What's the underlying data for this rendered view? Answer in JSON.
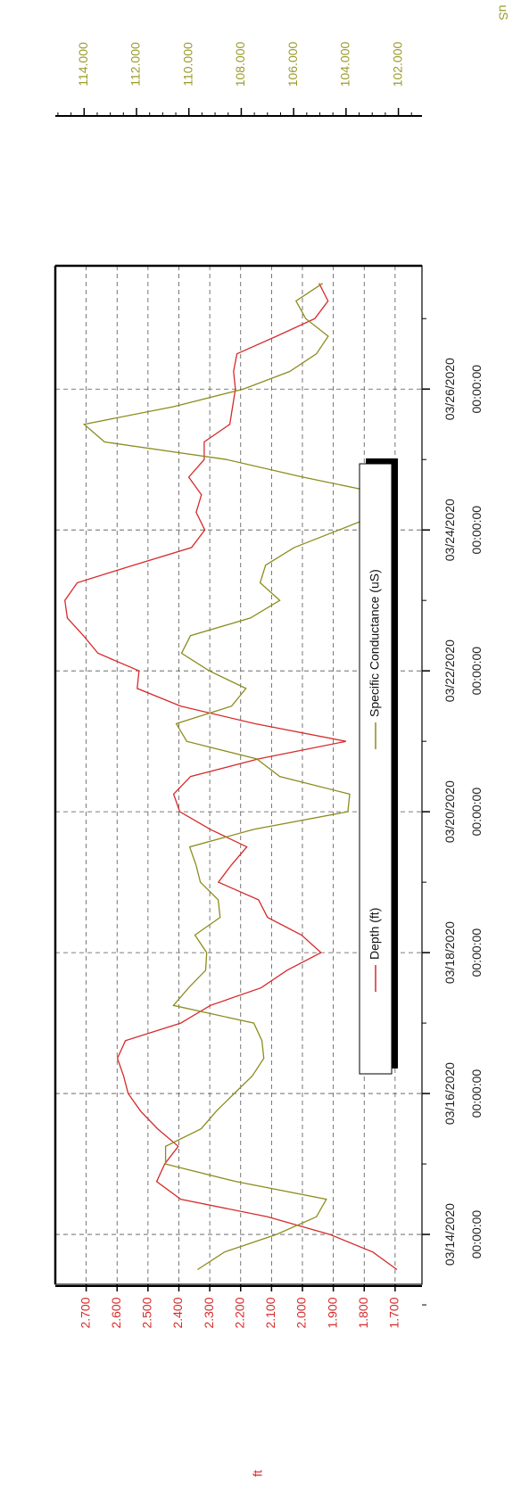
{
  "chart_data": {
    "type": "line",
    "x": [
      "03/13/2020 12:00:00",
      "03/13/2020 18:00:00",
      "03/14/2020 00:00:00",
      "03/14/2020 06:00:00",
      "03/14/2020 12:00:00",
      "03/14/2020 18:00:00",
      "03/15/2020 00:00:00",
      "03/15/2020 06:00:00",
      "03/15/2020 12:00:00",
      "03/15/2020 18:00:00",
      "03/16/2020 00:00:00",
      "03/16/2020 06:00:00",
      "03/16/2020 12:00:00",
      "03/16/2020 18:00:00",
      "03/17/2020 00:00:00",
      "03/17/2020 06:00:00",
      "03/17/2020 12:00:00",
      "03/17/2020 18:00:00",
      "03/18/2020 00:00:00",
      "03/18/2020 06:00:00",
      "03/18/2020 12:00:00",
      "03/18/2020 18:00:00",
      "03/19/2020 00:00:00",
      "03/19/2020 06:00:00",
      "03/19/2020 12:00:00",
      "03/19/2020 18:00:00",
      "03/20/2020 00:00:00",
      "03/20/2020 06:00:00",
      "03/20/2020 12:00:00",
      "03/20/2020 18:00:00",
      "03/21/2020 00:00:00",
      "03/21/2020 06:00:00",
      "03/21/2020 12:00:00",
      "03/21/2020 18:00:00",
      "03/22/2020 00:00:00",
      "03/22/2020 06:00:00",
      "03/22/2020 12:00:00",
      "03/22/2020 18:00:00",
      "03/23/2020 00:00:00",
      "03/23/2020 06:00:00",
      "03/23/2020 12:00:00",
      "03/23/2020 18:00:00",
      "03/24/2020 00:00:00",
      "03/24/2020 06:00:00",
      "03/24/2020 12:00:00",
      "03/24/2020 18:00:00",
      "03/25/2020 00:00:00",
      "03/25/2020 06:00:00",
      "03/25/2020 12:00:00",
      "03/25/2020 18:00:00",
      "03/26/2020 00:00:00",
      "03/26/2020 06:00:00",
      "03/26/2020 12:00:00",
      "03/26/2020 18:00:00",
      "03/27/2020 00:00:00",
      "03/27/2020 06:00:00",
      "03/27/2020 12:00:00"
    ],
    "series": [
      {
        "name": "Depth (ft)",
        "color": "#d62a2a",
        "values": [
          1.694,
          1.772,
          1.911,
          2.113,
          2.394,
          2.472,
          2.446,
          2.402,
          2.469,
          2.524,
          2.564,
          2.579,
          2.599,
          2.573,
          2.394,
          2.298,
          2.134,
          2.05,
          1.94,
          2.003,
          2.113,
          2.142,
          2.272,
          2.229,
          2.18,
          2.298,
          2.397,
          2.417,
          2.362,
          2.142,
          1.859,
          2.154,
          2.394,
          2.535,
          2.529,
          2.662,
          2.709,
          2.761,
          2.769,
          2.729,
          2.547,
          2.359,
          2.316,
          2.344,
          2.327,
          2.368,
          2.318,
          2.318,
          2.235,
          2.226,
          2.217,
          2.223,
          2.212,
          2.084,
          1.96,
          1.917,
          1.946
        ]
      },
      {
        "name": "Specific Conductance (uS)",
        "color": "#8c8c1e",
        "axis": "y2",
        "values": [
          109.67,
          108.64,
          106.66,
          105.13,
          104.75,
          108.2,
          110.89,
          110.89,
          109.53,
          108.95,
          108.27,
          107.58,
          107.14,
          107.21,
          107.52,
          110.59,
          110.01,
          109.36,
          109.32,
          109.77,
          108.81,
          108.88,
          109.56,
          109.73,
          109.97,
          107.52,
          103.93,
          103.86,
          106.53,
          107.41,
          110.08,
          110.48,
          108.37,
          107.82,
          109.22,
          110.28,
          109.94,
          107.65,
          106.53,
          107.28,
          107.07,
          105.98,
          104.27,
          102.57,
          102.4,
          105.64,
          108.57,
          113.22,
          114.0,
          110.59,
          107.92,
          106.15,
          105.13,
          104.68,
          105.54,
          105.91,
          104.89
        ]
      }
    ],
    "xlim": [
      "03/13/2020 07:00:00",
      "03/27/2020 18:00:00"
    ],
    "xticks": [
      "03/14/2020 00:00:00",
      "03/16/2020 00:00:00",
      "03/18/2020 00:00:00",
      "03/20/2020 00:00:00",
      "03/22/2020 00:00:00",
      "03/24/2020 00:00:00",
      "03/26/2020 00:00:00"
    ],
    "y_label": "ft",
    "ylim": [
      1.613,
      2.8
    ],
    "yticks": [
      {
        "value": 2.7,
        "label": "2.700"
      },
      {
        "value": 2.6,
        "label": "2.600"
      },
      {
        "value": 2.5,
        "label": "2.500"
      },
      {
        "value": 2.4,
        "label": "2.400"
      },
      {
        "value": 2.3,
        "label": "2.300"
      },
      {
        "value": 2.2,
        "label": "2.200"
      },
      {
        "value": 2.1,
        "label": "2.100"
      },
      {
        "value": 2.0,
        "label": "2.000"
      },
      {
        "value": 1.9,
        "label": "1.900"
      },
      {
        "value": 1.8,
        "label": "1.800"
      },
      {
        "value": 1.7,
        "label": "1.700"
      }
    ],
    "y2_label": "uS",
    "y2lim": [
      101.1,
      115.1
    ],
    "y2ticks": [
      {
        "value": 114,
        "label": "114.000"
      },
      {
        "value": 112,
        "label": "112.000"
      },
      {
        "value": 110,
        "label": "110.000"
      },
      {
        "value": 108,
        "label": "108.000"
      },
      {
        "value": 106,
        "label": "106.000"
      },
      {
        "value": 104,
        "label": "104.000"
      },
      {
        "value": 102,
        "label": "102.000"
      }
    ],
    "grid": true,
    "legend": "top"
  }
}
